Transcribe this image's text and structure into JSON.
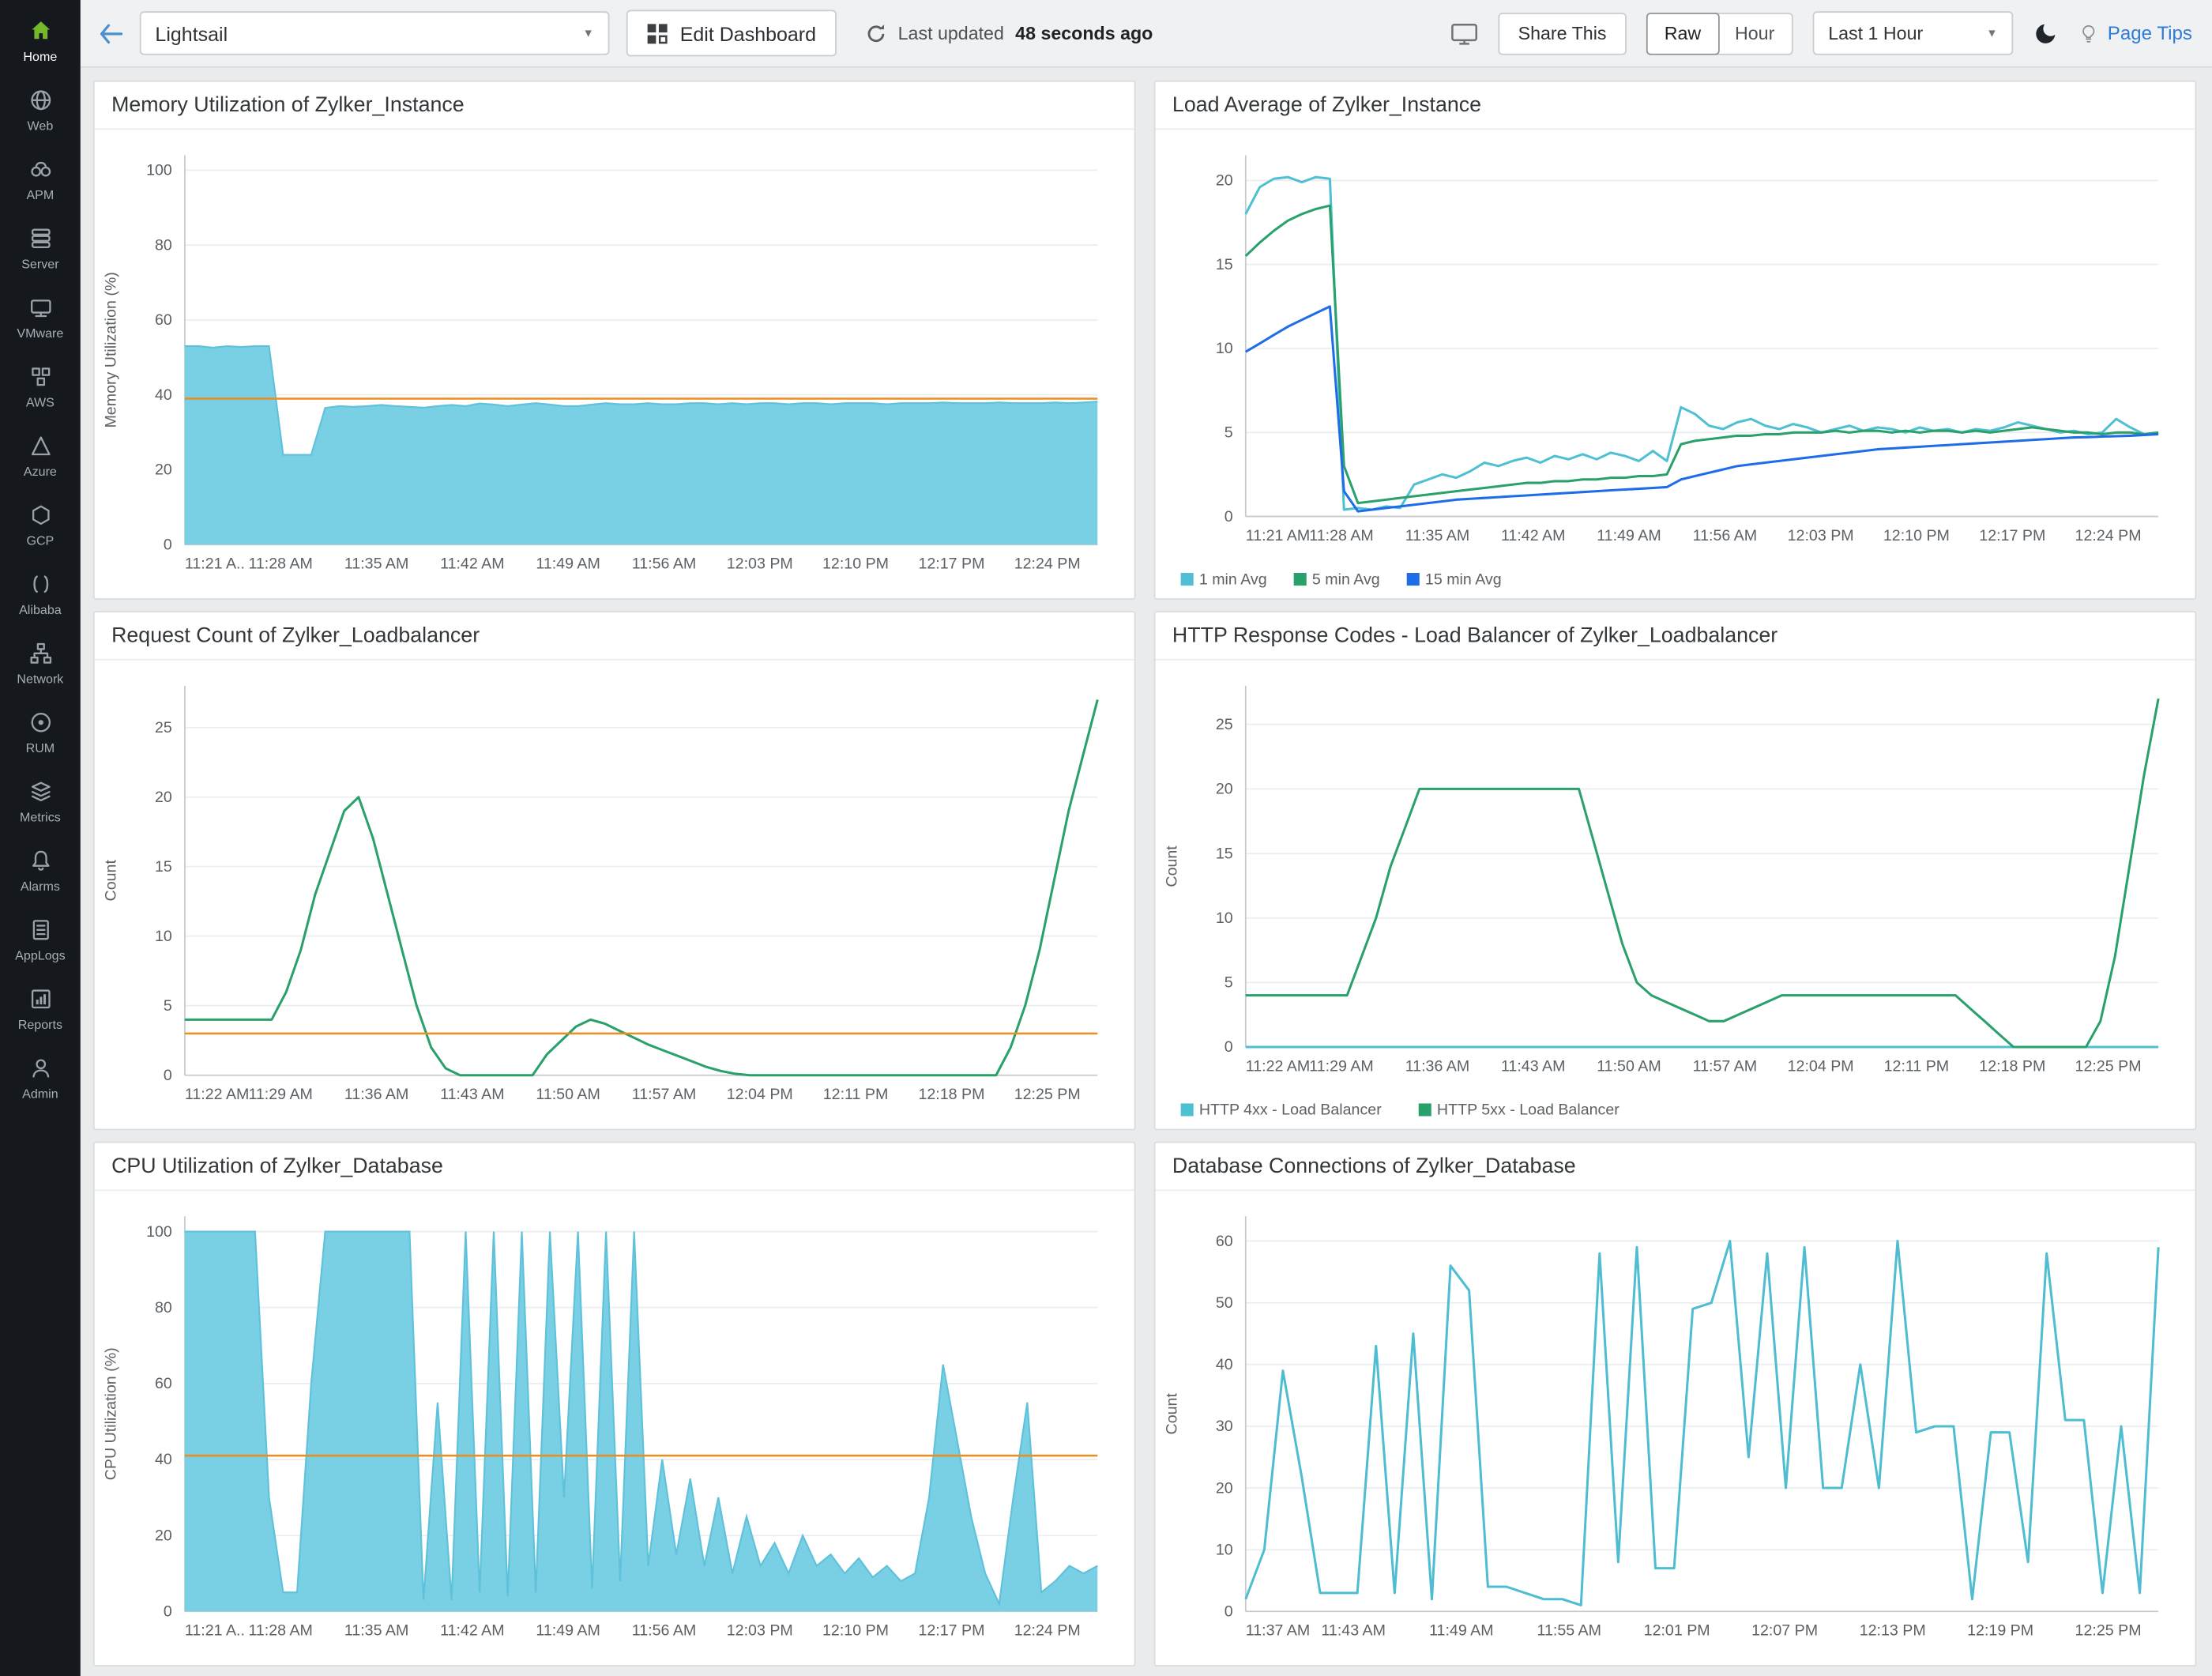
{
  "topbar": {
    "dashboard_select_value": "Lightsail",
    "edit_dashboard_label": "Edit Dashboard",
    "last_updated_prefix": "Last updated",
    "last_updated_value": "48 seconds ago",
    "share_this_label": "Share This",
    "raw_label": "Raw",
    "hour_label": "Hour",
    "time_range_value": "Last 1 Hour",
    "page_tips_label": "Page Tips"
  },
  "sidebar": {
    "items": [
      {
        "label": "Home",
        "active": true
      },
      {
        "label": "Web"
      },
      {
        "label": "APM"
      },
      {
        "label": "Server"
      },
      {
        "label": "VMware"
      },
      {
        "label": "AWS"
      },
      {
        "label": "Azure"
      },
      {
        "label": "GCP"
      },
      {
        "label": "Alibaba"
      },
      {
        "label": "Network"
      },
      {
        "label": "RUM"
      },
      {
        "label": "Metrics"
      },
      {
        "label": "Alarms"
      },
      {
        "label": "AppLogs"
      },
      {
        "label": "Reports"
      },
      {
        "label": "Admin"
      }
    ]
  },
  "colors": {
    "cyan_area": "#79cfe4",
    "cyan_line": "#4fc0d4",
    "green_line": "#2aa06a",
    "blue_line": "#1f6ce8",
    "threshold_orange": "#ee8c1e"
  },
  "chart_data": [
    {
      "panel_title": "Memory Utilization of Zylker_Instance",
      "type": "area",
      "ylabel": "Memory Utilization (%)",
      "ylim": [
        0,
        104
      ],
      "yticks": [
        0,
        20,
        40,
        60,
        80,
        100
      ],
      "xticks": [
        "11:21 A..",
        "11:28 AM",
        "11:35 AM",
        "11:42 AM",
        "11:49 AM",
        "11:56 AM",
        "12:03 PM",
        "12:10 PM",
        "12:17 PM",
        "12:24 PM"
      ],
      "threshold": 39,
      "legend": false,
      "series": [
        {
          "name": "Memory Utilization",
          "color": "#79cfe4",
          "stroke": "#5fc2da",
          "fill": true,
          "values": [
            53,
            53,
            52.6,
            53,
            52.8,
            53,
            53,
            24,
            24,
            24,
            36.5,
            37,
            36.8,
            37,
            37.3,
            37,
            36.8,
            36.6,
            37,
            37.3,
            37,
            37.7,
            37.4,
            37,
            37.4,
            37.8,
            37.4,
            37,
            37,
            37.4,
            37.8,
            37.5,
            37.5,
            37.8,
            37.5,
            37.5,
            37.8,
            37.8,
            37.5,
            37.8,
            37.5,
            37.8,
            37.8,
            37.5,
            37.8,
            37.8,
            37.5,
            37.8,
            37.8,
            37.8,
            37.5,
            37.8,
            37.8,
            37.8,
            38,
            37.8,
            37.8,
            37.8,
            38,
            37.8,
            37.8,
            37.8,
            38,
            37.8,
            38,
            38.2
          ]
        }
      ]
    },
    {
      "panel_title": "Load Average of Zylker_Instance",
      "type": "line",
      "ylabel": "",
      "ylim": [
        0,
        21.5
      ],
      "yticks": [
        0,
        5,
        10,
        15,
        20
      ],
      "xticks": [
        "11:21 AM",
        "11:28 AM",
        "11:35 AM",
        "11:42 AM",
        "11:49 AM",
        "11:56 AM",
        "12:03 PM",
        "12:10 PM",
        "12:17 PM",
        "12:24 PM"
      ],
      "threshold": null,
      "legend": true,
      "series": [
        {
          "name": "1 min Avg",
          "color": "#4fc0d4",
          "fill": false,
          "values": [
            18,
            19.6,
            20.1,
            20.2,
            19.9,
            20.2,
            20.1,
            0.4,
            0.5,
            0.4,
            0.6,
            0.5,
            1.9,
            2.2,
            2.5,
            2.3,
            2.7,
            3.2,
            3,
            3.3,
            3.5,
            3.2,
            3.6,
            3.4,
            3.7,
            3.4,
            3.8,
            3.6,
            3.3,
            3.9,
            3.3,
            6.5,
            6.1,
            5.4,
            5.2,
            5.6,
            5.8,
            5.4,
            5.2,
            5.5,
            5.3,
            5,
            5.2,
            5.4,
            5.1,
            5.3,
            5.2,
            5,
            5.3,
            5.1,
            5.2,
            5,
            5.2,
            5.1,
            5.3,
            5.6,
            5.4,
            5.2,
            5,
            5.1,
            4.9,
            5,
            5.8,
            5.3,
            4.9,
            5
          ]
        },
        {
          "name": "5 min Avg",
          "color": "#2aa06a",
          "fill": false,
          "values": [
            15.5,
            16.3,
            17,
            17.6,
            18,
            18.3,
            18.5,
            3,
            0.8,
            0.9,
            1,
            1.1,
            1.2,
            1.3,
            1.4,
            1.5,
            1.6,
            1.7,
            1.8,
            1.9,
            2,
            2,
            2.1,
            2.1,
            2.2,
            2.2,
            2.3,
            2.3,
            2.4,
            2.4,
            2.5,
            4.3,
            4.5,
            4.6,
            4.7,
            4.8,
            4.8,
            4.9,
            4.9,
            5,
            5,
            5,
            5.1,
            5,
            5.1,
            5.1,
            5,
            5.1,
            5,
            5.1,
            5.1,
            5,
            5.1,
            5,
            5.1,
            5.2,
            5.3,
            5.2,
            5.1,
            5,
            5,
            4.9,
            5,
            5,
            4.9,
            5
          ]
        },
        {
          "name": "15 min Avg",
          "color": "#1f6ce8",
          "fill": false,
          "values": [
            9.8,
            10.3,
            10.8,
            11.3,
            11.7,
            12.1,
            12.5,
            1.5,
            0.3,
            0.4,
            0.5,
            0.6,
            0.7,
            0.8,
            0.9,
            1,
            1.05,
            1.1,
            1.15,
            1.2,
            1.25,
            1.3,
            1.35,
            1.4,
            1.45,
            1.5,
            1.55,
            1.6,
            1.65,
            1.7,
            1.75,
            2.2,
            2.4,
            2.6,
            2.8,
            3,
            3.1,
            3.2,
            3.3,
            3.4,
            3.5,
            3.6,
            3.7,
            3.8,
            3.9,
            4,
            4.05,
            4.1,
            4.15,
            4.2,
            4.25,
            4.3,
            4.35,
            4.4,
            4.45,
            4.5,
            4.55,
            4.6,
            4.65,
            4.7,
            4.72,
            4.75,
            4.78,
            4.8,
            4.85,
            4.9
          ]
        }
      ]
    },
    {
      "panel_title": "Request Count of Zylker_Loadbalancer",
      "type": "line",
      "ylabel": "Count",
      "ylim": [
        0,
        28
      ],
      "yticks": [
        0,
        5,
        10,
        15,
        20,
        25
      ],
      "xticks": [
        "11:22 AM",
        "11:29 AM",
        "11:36 AM",
        "11:43 AM",
        "11:50 AM",
        "11:57 AM",
        "12:04 PM",
        "12:11 PM",
        "12:18 PM",
        "12:25 PM"
      ],
      "threshold": 3,
      "legend": false,
      "series": [
        {
          "name": "Request Count",
          "color": "#2aa06a",
          "fill": false,
          "values": [
            4,
            4,
            4,
            4,
            4,
            4,
            4,
            6,
            9,
            13,
            16,
            19,
            20,
            17,
            13,
            9,
            5,
            2,
            0.5,
            0,
            0,
            0,
            0,
            0,
            0,
            1.5,
            2.5,
            3.5,
            4,
            3.7,
            3.2,
            2.7,
            2.2,
            1.8,
            1.4,
            1,
            0.6,
            0.3,
            0.1,
            0,
            0,
            0,
            0,
            0,
            0,
            0,
            0,
            0,
            0,
            0,
            0,
            0,
            0,
            0,
            0,
            0,
            0,
            2,
            5,
            9,
            14,
            19,
            23,
            27
          ]
        }
      ]
    },
    {
      "panel_title": "HTTP Response Codes - Load Balancer of Zylker_Loadbalancer",
      "type": "line",
      "ylabel": "Count",
      "ylim": [
        0,
        28
      ],
      "yticks": [
        0,
        5,
        10,
        15,
        20,
        25
      ],
      "xticks": [
        "11:22 AM",
        "11:29 AM",
        "11:36 AM",
        "11:43 AM",
        "11:50 AM",
        "11:57 AM",
        "12:04 PM",
        "12:11 PM",
        "12:18 PM",
        "12:25 PM"
      ],
      "threshold": null,
      "legend": true,
      "series": [
        {
          "name": "HTTP 4xx - Load Balancer",
          "color": "#4fc0d4",
          "fill": false,
          "values": [
            0,
            0,
            0,
            0,
            0,
            0,
            0,
            0,
            0,
            0,
            0,
            0,
            0,
            0,
            0,
            0,
            0,
            0,
            0,
            0,
            0,
            0,
            0,
            0,
            0,
            0,
            0,
            0,
            0,
            0,
            0,
            0,
            0,
            0,
            0,
            0,
            0,
            0,
            0,
            0,
            0,
            0,
            0,
            0,
            0,
            0,
            0,
            0,
            0,
            0,
            0,
            0,
            0,
            0,
            0,
            0,
            0,
            0,
            0,
            0,
            0,
            0,
            0,
            0
          ]
        },
        {
          "name": "HTTP 5xx - Load Balancer",
          "color": "#2aa06a",
          "fill": false,
          "values": [
            4,
            4,
            4,
            4,
            4,
            4,
            4,
            4,
            7,
            10,
            14,
            17,
            20,
            20,
            20,
            20,
            20,
            20,
            20,
            20,
            20,
            20,
            20,
            20,
            16,
            12,
            8,
            5,
            4,
            3.5,
            3,
            2.5,
            2,
            2,
            2.5,
            3,
            3.5,
            4,
            4,
            4,
            4,
            4,
            4,
            4,
            4,
            4,
            4,
            4,
            4,
            4,
            3,
            2,
            1,
            0,
            0,
            0,
            0,
            0,
            0,
            2,
            7,
            14,
            21,
            27
          ]
        }
      ]
    },
    {
      "panel_title": "CPU Utilization of Zylker_Database",
      "type": "area",
      "ylabel": "CPU Utilization (%)",
      "ylim": [
        0,
        104
      ],
      "yticks": [
        0,
        20,
        40,
        60,
        80,
        100
      ],
      "xticks": [
        "11:21 A..",
        "11:28 AM",
        "11:35 AM",
        "11:42 AM",
        "11:49 AM",
        "11:56 AM",
        "12:03 PM",
        "12:10 PM",
        "12:17 PM",
        "12:24 PM"
      ],
      "threshold": 41,
      "legend": false,
      "series": [
        {
          "name": "CPU Utilization",
          "color": "#79cfe4",
          "stroke": "#5fc2da",
          "fill": true,
          "values": [
            100,
            100,
            100,
            100,
            100,
            100,
            30,
            5,
            5,
            60,
            100,
            100,
            100,
            100,
            100,
            100,
            100,
            3,
            55,
            3,
            100,
            5,
            100,
            4,
            100,
            5,
            100,
            30,
            100,
            6,
            100,
            8,
            100,
            12,
            40,
            15,
            35,
            12,
            30,
            10,
            25,
            12,
            18,
            10,
            20,
            12,
            15,
            10,
            14,
            9,
            12,
            8,
            10,
            30,
            65,
            45,
            25,
            10,
            2,
            30,
            55,
            5,
            8,
            12,
            10,
            12
          ]
        }
      ]
    },
    {
      "panel_title": "Database Connections of Zylker_Database",
      "type": "line",
      "ylabel": "Count",
      "ylim": [
        0,
        64
      ],
      "yticks": [
        0,
        10,
        20,
        30,
        40,
        50,
        60
      ],
      "xticks": [
        "11:37 AM",
        "11:43 AM",
        "11:49 AM",
        "11:55 AM",
        "12:01 PM",
        "12:07 PM",
        "12:13 PM",
        "12:19 PM",
        "12:25 PM"
      ],
      "threshold": null,
      "legend": false,
      "series": [
        {
          "name": "Database Connections",
          "color": "#4fbdd1",
          "fill": false,
          "values": [
            2,
            10,
            39,
            22,
            3,
            3,
            3,
            43,
            3,
            45,
            2,
            56,
            52,
            4,
            4,
            3,
            2,
            2,
            1,
            58,
            8,
            59,
            7,
            7,
            49,
            50,
            60,
            25,
            58,
            20,
            59,
            20,
            20,
            40,
            20,
            60,
            29,
            30,
            30,
            2,
            29,
            29,
            8,
            58,
            31,
            31,
            3,
            30,
            3,
            59
          ]
        }
      ]
    }
  ]
}
